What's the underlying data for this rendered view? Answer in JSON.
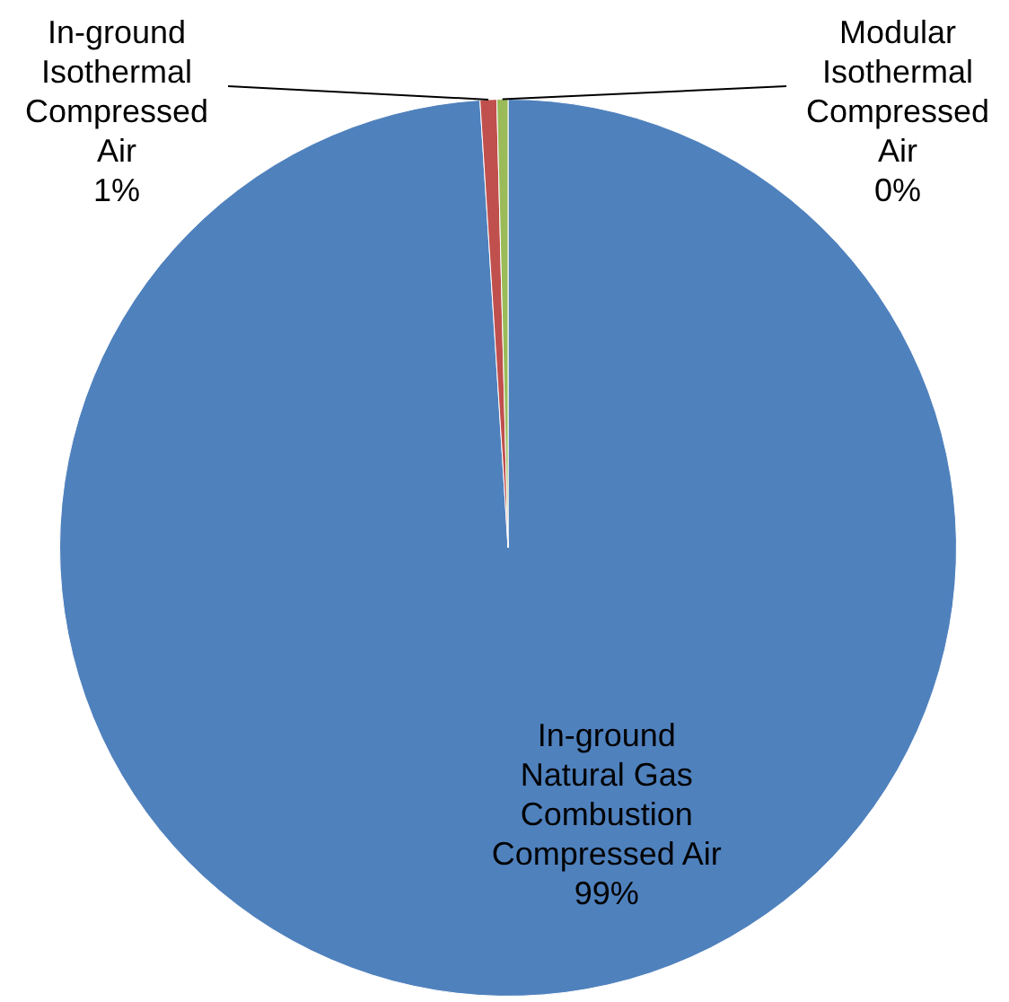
{
  "chart_data": {
    "type": "pie",
    "categories": [
      "In-ground Natural Gas Combustion Compressed Air",
      "In-ground Isothermal Compressed Air",
      "Modular Isothermal Compressed Air"
    ],
    "values": [
      99.0,
      0.6,
      0.4
    ],
    "colors": [
      "#4f81bd",
      "#c0504d",
      "#9bbb59"
    ],
    "value_labels": [
      "99%",
      "1%",
      "0%"
    ],
    "legend": false
  }
}
